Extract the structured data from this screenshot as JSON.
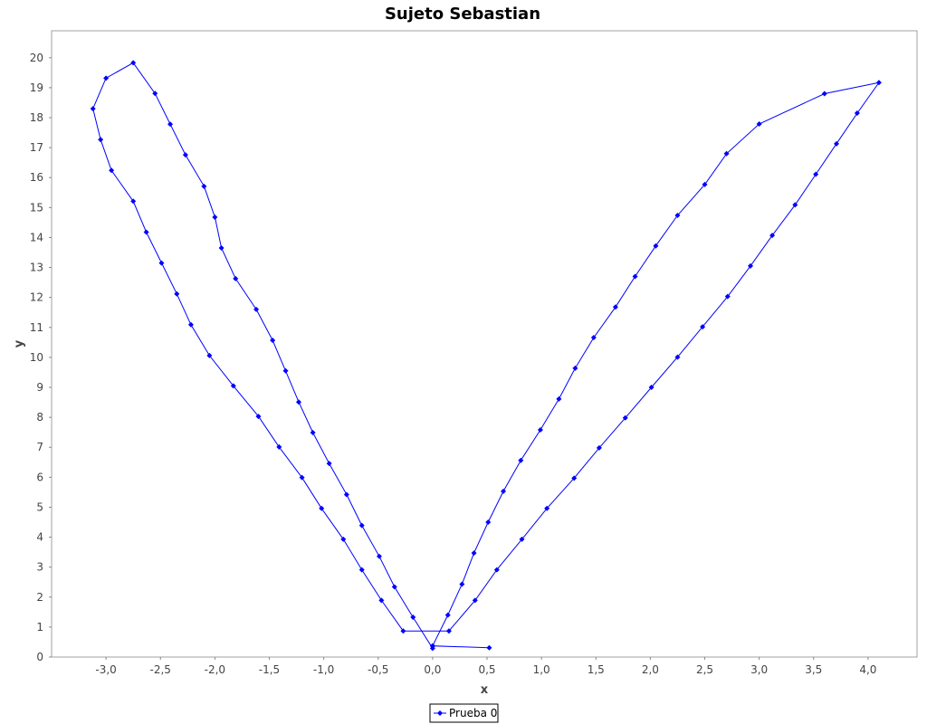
{
  "chart_data": {
    "type": "line",
    "title": "Sujeto Sebastian",
    "xlabel": "x",
    "ylabel": "y",
    "xlim": [
      -3.5,
      4.45
    ],
    "ylim": [
      0,
      20.9
    ],
    "xticks": [
      -3.0,
      -2.5,
      -2.0,
      -1.5,
      -1.0,
      -0.5,
      0.0,
      0.5,
      1.0,
      1.5,
      2.0,
      2.5,
      3.0,
      3.5,
      4.0
    ],
    "xtick_labels": [
      "-3,0",
      "-2,5",
      "-2,0",
      "-1,5",
      "-1,0",
      "-0,5",
      "0,0",
      "0,5",
      "1,0",
      "1,5",
      "2,0",
      "2,5",
      "3,0",
      "3,5",
      "4,0"
    ],
    "yticks": [
      0,
      1,
      2,
      3,
      4,
      5,
      6,
      7,
      8,
      9,
      10,
      11,
      12,
      13,
      14,
      15,
      16,
      17,
      18,
      19,
      20
    ],
    "ytick_labels": [
      "0",
      "1",
      "2",
      "3",
      "4",
      "5",
      "6",
      "7",
      "8",
      "9",
      "10",
      "11",
      "12",
      "13",
      "14",
      "15",
      "16",
      "17",
      "18",
      "19",
      "20"
    ],
    "grid": false,
    "legend_position": "bottom-center",
    "series": [
      {
        "name": "Prueba 0",
        "color": "#0000ff",
        "points": [
          [
            0.52,
            0.31
          ],
          [
            0.0,
            0.37
          ],
          [
            -0.0,
            0.29
          ],
          [
            -0.18,
            1.33
          ],
          [
            -0.35,
            2.34
          ],
          [
            -0.49,
            3.36
          ],
          [
            -0.65,
            4.39
          ],
          [
            -0.79,
            5.42
          ],
          [
            -0.95,
            6.46
          ],
          [
            -1.1,
            7.49
          ],
          [
            -1.23,
            8.51
          ],
          [
            -1.35,
            9.55
          ],
          [
            -1.47,
            10.57
          ],
          [
            -1.62,
            11.6
          ],
          [
            -1.81,
            12.63
          ],
          [
            -1.94,
            13.65
          ],
          [
            -2.0,
            14.68
          ],
          [
            -2.1,
            15.71
          ],
          [
            -2.27,
            16.76
          ],
          [
            -2.41,
            17.78
          ],
          [
            -2.55,
            18.81
          ],
          [
            -2.75,
            19.83
          ],
          [
            -3.0,
            19.32
          ],
          [
            -3.12,
            18.3
          ],
          [
            -3.05,
            17.27
          ],
          [
            -2.95,
            16.24
          ],
          [
            -2.75,
            15.21
          ],
          [
            -2.63,
            14.18
          ],
          [
            -2.49,
            13.15
          ],
          [
            -2.35,
            12.12
          ],
          [
            -2.22,
            11.09
          ],
          [
            -2.05,
            10.06
          ],
          [
            -1.83,
            9.05
          ],
          [
            -1.6,
            8.03
          ],
          [
            -1.41,
            7.01
          ],
          [
            -1.2,
            5.99
          ],
          [
            -1.02,
            4.96
          ],
          [
            -0.82,
            3.93
          ],
          [
            -0.65,
            2.91
          ],
          [
            -0.47,
            1.89
          ],
          [
            -0.27,
            0.87
          ],
          [
            0.15,
            0.87
          ],
          [
            0.39,
            1.89
          ],
          [
            0.59,
            2.91
          ],
          [
            0.82,
            3.93
          ],
          [
            1.05,
            4.96
          ],
          [
            1.3,
            5.97
          ],
          [
            1.53,
            6.98
          ],
          [
            1.77,
            7.98
          ],
          [
            2.01,
            9.0
          ],
          [
            2.25,
            10.01
          ],
          [
            2.48,
            11.02
          ],
          [
            2.71,
            12.03
          ],
          [
            2.92,
            13.05
          ],
          [
            3.12,
            14.07
          ],
          [
            3.33,
            15.09
          ],
          [
            3.52,
            16.11
          ],
          [
            3.71,
            17.13
          ],
          [
            3.9,
            18.15
          ],
          [
            4.1,
            19.17
          ],
          [
            3.6,
            18.8
          ],
          [
            3.0,
            17.79
          ],
          [
            2.7,
            16.8
          ],
          [
            2.5,
            15.77
          ],
          [
            2.25,
            14.74
          ],
          [
            2.05,
            13.72
          ],
          [
            1.86,
            12.7
          ],
          [
            1.68,
            11.68
          ],
          [
            1.48,
            10.66
          ],
          [
            1.31,
            9.64
          ],
          [
            1.16,
            8.61
          ],
          [
            0.99,
            7.58
          ],
          [
            0.81,
            6.56
          ],
          [
            0.65,
            5.53
          ],
          [
            0.51,
            4.5
          ],
          [
            0.38,
            3.47
          ],
          [
            0.27,
            2.43
          ],
          [
            0.14,
            1.4
          ],
          [
            0.0,
            0.37
          ]
        ]
      }
    ]
  }
}
